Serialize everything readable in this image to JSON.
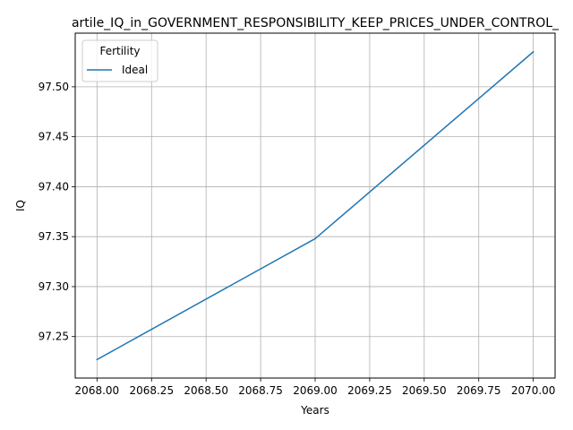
{
  "chart_data": {
    "type": "line",
    "title": "artile_IQ_in_GOVERNMENT_RESPONSIBILITY_KEEP_PRICES_UNDER_CONTROL_",
    "xlabel": "Years",
    "ylabel": "IQ",
    "x": [
      2068,
      2069,
      2070
    ],
    "series": [
      {
        "name": "Ideal",
        "values": [
          97.227,
          97.348,
          97.535
        ],
        "color": "#1f77b4"
      }
    ],
    "xlim": [
      2067.9,
      2070.1
    ],
    "ylim": [
      97.2085,
      97.5537
    ],
    "xticks": [
      2068.0,
      2068.25,
      2068.5,
      2068.75,
      2069.0,
      2069.25,
      2069.5,
      2069.75,
      2070.0
    ],
    "xtick_labels": [
      "2068.00",
      "2068.25",
      "2068.50",
      "2068.75",
      "2069.00",
      "2069.25",
      "2069.50",
      "2069.75",
      "2070.00"
    ],
    "yticks": [
      97.25,
      97.3,
      97.35,
      97.4,
      97.45,
      97.5
    ],
    "ytick_labels": [
      "97.25",
      "97.30",
      "97.35",
      "97.40",
      "97.45",
      "97.50"
    ],
    "grid": true,
    "legend_title": "Fertility",
    "legend_position": "upper-left"
  }
}
